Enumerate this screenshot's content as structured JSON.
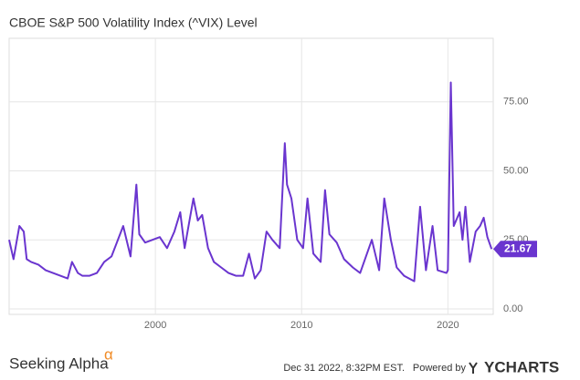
{
  "chart_data": {
    "type": "line",
    "title": "CBOE S&P 500 Volatility Index (^VIX) Level",
    "x": [
      1990.0,
      1990.3,
      1990.7,
      1991.0,
      1991.2,
      1991.5,
      1992.0,
      1992.5,
      1993.0,
      1993.5,
      1994.0,
      1994.3,
      1994.7,
      1995.0,
      1995.5,
      1996.0,
      1996.5,
      1997.0,
      1997.8,
      1998.3,
      1998.7,
      1998.9,
      1999.3,
      1999.8,
      2000.3,
      2000.8,
      2001.3,
      2001.7,
      2002.0,
      2002.6,
      2002.9,
      2003.2,
      2003.6,
      2004.0,
      2004.5,
      2005.0,
      2005.5,
      2006.0,
      2006.4,
      2006.8,
      2007.2,
      2007.6,
      2008.0,
      2008.5,
      2008.85,
      2009.0,
      2009.3,
      2009.7,
      2010.1,
      2010.4,
      2010.8,
      2011.3,
      2011.6,
      2011.9,
      2012.4,
      2012.9,
      2013.5,
      2014.0,
      2014.8,
      2015.3,
      2015.65,
      2016.1,
      2016.5,
      2017.0,
      2017.7,
      2018.1,
      2018.5,
      2018.95,
      2019.3,
      2019.9,
      2020.0,
      2020.2,
      2020.4,
      2020.8,
      2021.0,
      2021.2,
      2021.5,
      2021.9,
      2022.2,
      2022.45,
      2022.7,
      2022.99
    ],
    "series": [
      {
        "name": "VIX",
        "color": "#6a35cf",
        "values": [
          25,
          18,
          30,
          28,
          18,
          17,
          16,
          14,
          13,
          12,
          11,
          17,
          13,
          12,
          12,
          13,
          17,
          19,
          30,
          19,
          45,
          27,
          24,
          25,
          26,
          22,
          28,
          35,
          22,
          40,
          32,
          34,
          22,
          17,
          15,
          13,
          12,
          12,
          20,
          11,
          14,
          28,
          25,
          22,
          60,
          45,
          40,
          25,
          22,
          40,
          20,
          17,
          43,
          27,
          24,
          18,
          15,
          13,
          25,
          14,
          40,
          25,
          15,
          12,
          10,
          37,
          14,
          30,
          14,
          13,
          14,
          82,
          30,
          35,
          25,
          37,
          17,
          28,
          30,
          33,
          26,
          21.67
        ]
      }
    ],
    "xlim": [
      1990,
      2023.1
    ],
    "xticks": [
      2000,
      2010,
      2020
    ],
    "ylim": [
      -2,
      98
    ],
    "yticks": [
      {
        "value": 0,
        "label": "0.00"
      },
      {
        "value": 25,
        "label": "25.00"
      },
      {
        "value": 50,
        "label": "50.00"
      },
      {
        "value": 75,
        "label": "75.00"
      }
    ],
    "grid": true,
    "brand": "Seeking Alpha",
    "brand_mark": "α",
    "timestamp": "Dec 31 2022, 8:32PM EST.",
    "powered": "Powered by",
    "provider": "YCHARTS"
  }
}
